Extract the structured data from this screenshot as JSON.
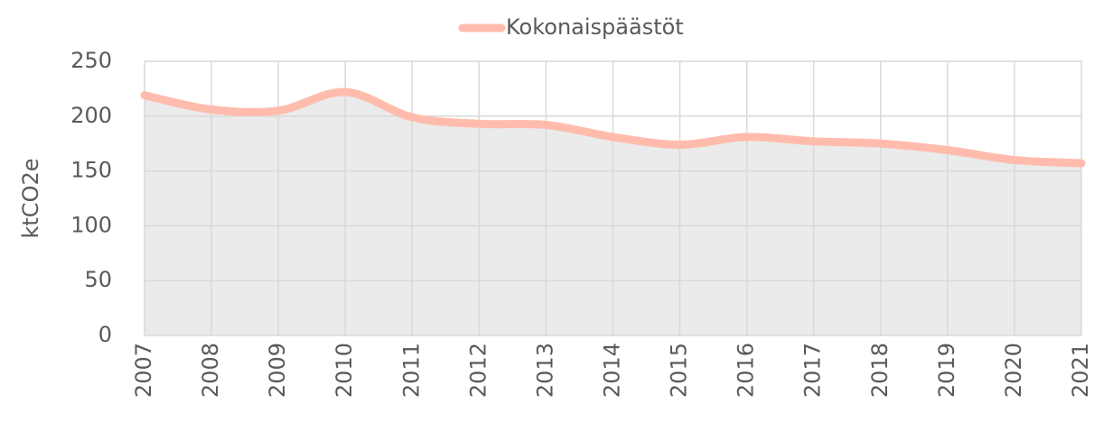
{
  "chart_data": {
    "type": "line",
    "y_label": "ktCO2e",
    "categories": [
      "2007",
      "2008",
      "2009",
      "2010",
      "2011",
      "2012",
      "2013",
      "2014",
      "2015",
      "2016",
      "2017",
      "2018",
      "2019",
      "2020",
      "2021"
    ],
    "series": [
      {
        "name": "Kokonaispäästöt",
        "color": "#ffbcad",
        "values": [
          219,
          206,
          205,
          222,
          199,
          193,
          192,
          181,
          174,
          181,
          177,
          175,
          169,
          160,
          157
        ]
      }
    ],
    "area_color": "#ebebeb",
    "ylim": [
      0,
      250
    ],
    "yticks": [
      0,
      50,
      100,
      150,
      200,
      250
    ],
    "grid": true,
    "smooth": true,
    "legend": "top"
  }
}
